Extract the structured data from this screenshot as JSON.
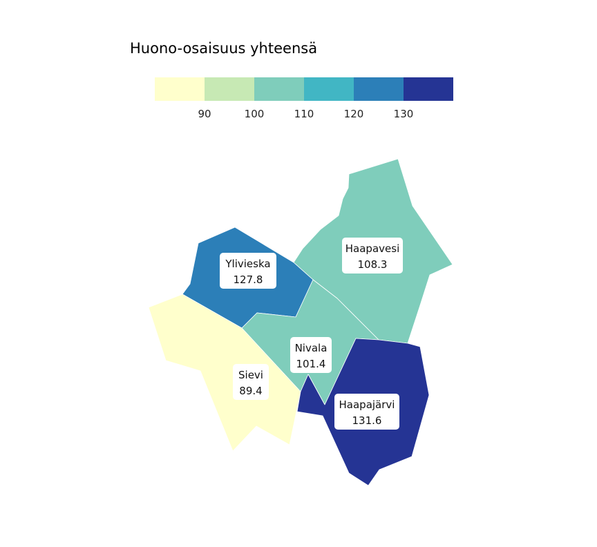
{
  "legend": {
    "title": "Huono-osaisuus yhteensä",
    "bins": [
      {
        "color": "#ffffcc"
      },
      {
        "color": "#c7e9b4"
      },
      {
        "color": "#7fcdbb"
      },
      {
        "color": "#41b6c4"
      },
      {
        "color": "#2c7fb8"
      },
      {
        "color": "#253494"
      }
    ],
    "ticks": [
      "90",
      "100",
      "110",
      "120",
      "130"
    ]
  },
  "regions": [
    {
      "key": "haapavesi",
      "name": "Haapavesi",
      "value": "108.3",
      "color": "#7fcdbb"
    },
    {
      "key": "ylivieska",
      "name": "Ylivieska",
      "value": "127.8",
      "color": "#2c7fb8"
    },
    {
      "key": "nivala",
      "name": "Nivala",
      "value": "101.4",
      "color": "#7fcdbb"
    },
    {
      "key": "sievi",
      "name": "Sievi",
      "value": "89.4",
      "color": "#ffffcc"
    },
    {
      "key": "haapajarvi",
      "name": "Haapajärvi",
      "value": "131.6",
      "color": "#253494"
    }
  ]
}
